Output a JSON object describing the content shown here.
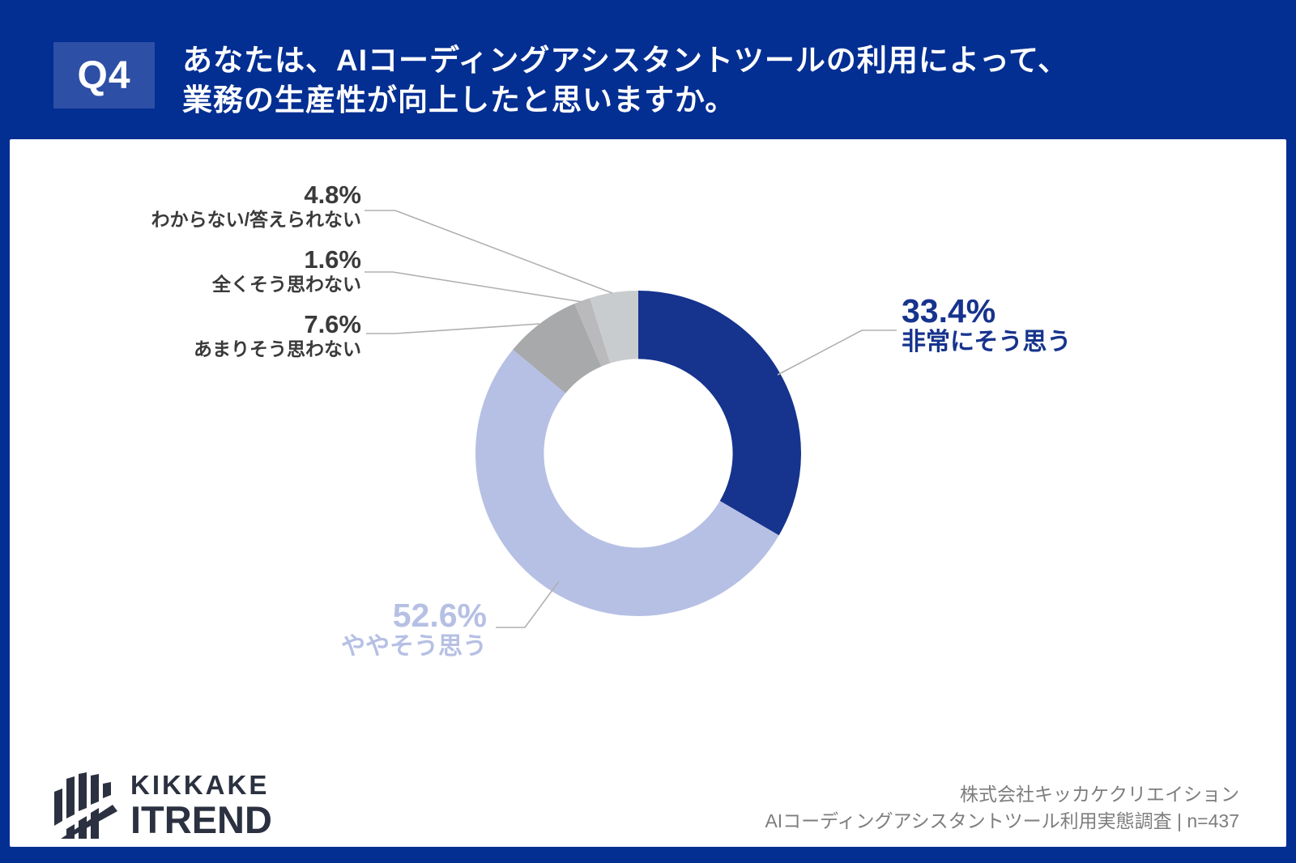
{
  "header": {
    "badge": "Q4",
    "title_line1": "あなたは、AIコーディングアシスタントツールの利用によって、",
    "title_line2": "業務の生産性が向上したと思いますか。"
  },
  "chart_data": {
    "type": "pie",
    "subtype": "donut",
    "title": "あなたは、AIコーディングアシスタントツールの利用によって、業務の生産性が向上したと思いますか。",
    "sample_size": "n=437",
    "start_angle_deg": 0,
    "direction": "clockwise",
    "inner_ratio": 0.58,
    "legend_position": "callouts",
    "slices": [
      {
        "label": "非常にそう思う",
        "value": 33.4,
        "pct": "33.4%",
        "color": "#16338d",
        "label_color": "#16338d"
      },
      {
        "label": "ややそう思う",
        "value": 52.6,
        "pct": "52.6%",
        "color": "#b6c0e4",
        "label_color": "#b6c0e4"
      },
      {
        "label": "あまりそう思わない",
        "value": 7.6,
        "pct": "7.6%",
        "color": "#a7a9ab",
        "label_color": "#3a3a3a"
      },
      {
        "label": "全くそう思わない",
        "value": 1.6,
        "pct": "1.6%",
        "color": "#bababc",
        "label_color": "#3a3a3a"
      },
      {
        "label": "わからない/答えられない",
        "value": 4.8,
        "pct": "4.8%",
        "color": "#c9cccf",
        "label_color": "#3a3a3a"
      }
    ]
  },
  "footer": {
    "logo_line1": "KIKKAKE",
    "logo_line2": "ITREND",
    "credit_line1": "株式会社キッカケクリエイション",
    "credit_line2": "AIコーディングアシスタントツール利用実態調査 | n=437"
  },
  "colors": {
    "page_bg": "#032e92",
    "badge_bg": "#2e4fa6",
    "panel_bg": "#ffffff",
    "title_text": "#ffffff",
    "leader_line": "#b0b0b0",
    "small_label_text": "#3a3a3a",
    "logo_text": "#2b3140",
    "credit_text": "#7d7d7d"
  }
}
